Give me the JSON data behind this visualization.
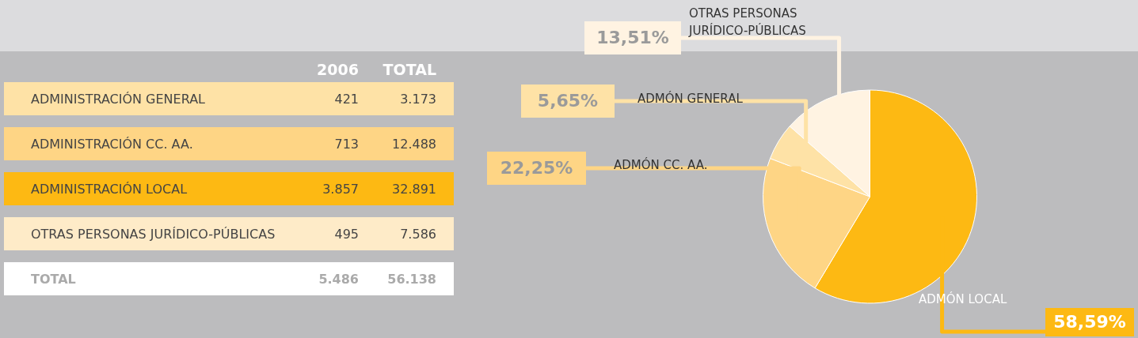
{
  "chart_data": [
    {
      "type": "other",
      "categories": [
        "ADMINISTRACIÓN GENERAL",
        "ADMINISTRACIÓN CC. AA.",
        "ADMINISTRACIÓN LOCAL",
        "OTRAS PERSONAS JURÍDICO-PÚBLICAS",
        "TOTAL"
      ],
      "colors": [
        "#fee2a6",
        "#fed585",
        "#fdb913",
        "#feebc8",
        "#ffffff"
      ],
      "series": [
        {
          "name": "2006",
          "values": [
            421,
            713,
            3857,
            495,
            5486
          ],
          "value_labels": [
            "421",
            "713",
            "3.857",
            "495",
            "5.486"
          ],
          "colors": [
            "#fee2a6",
            "#fed585",
            "#fdb913",
            "#feebc8",
            "#ffffff"
          ]
        },
        {
          "name": "TOTAL",
          "values": [
            3173,
            12488,
            32891,
            7586,
            56138
          ],
          "value_labels": [
            "3.173",
            "12.488",
            "32.891",
            "7.586",
            "56.138"
          ],
          "colors": [
            "#fee2a6",
            "#fed585",
            "#fdb913",
            "#feebc8",
            "#ffffff"
          ]
        }
      ]
    },
    {
      "type": "pie",
      "categories": [
        "ADMÓN LOCAL",
        "ADMÓN CC. AA.",
        "ADMÓN GENERAL",
        "OTRAS PERSONAS JURÍDICO-PÚBLICAS"
      ],
      "values": [
        58.59,
        22.25,
        5.65,
        13.51
      ],
      "colors": [
        "#fdb913",
        "#fed585",
        "#fee2a6",
        "#fff3e2"
      ],
      "value_labels": [
        "58,59%",
        "22,25%",
        "5,65%",
        "13,51%"
      ]
    }
  ]
}
